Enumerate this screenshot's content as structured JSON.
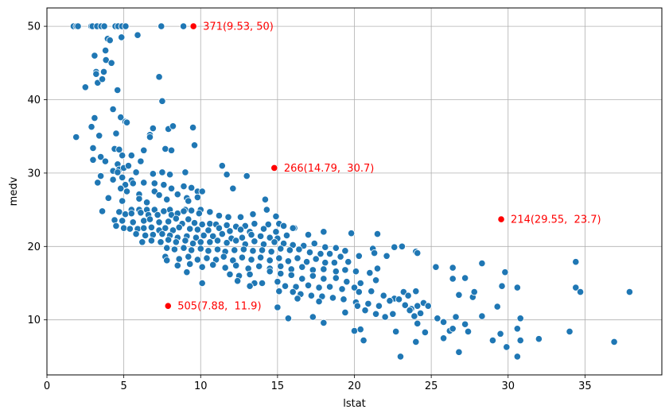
{
  "chart_data": {
    "type": "scatter",
    "title": "",
    "xlabel": "lstat",
    "ylabel": "medv",
    "xlim": [
      0,
      40
    ],
    "ylim": [
      2.5,
      52.5
    ],
    "xticks": [
      0,
      5,
      10,
      15,
      20,
      25,
      30,
      35
    ],
    "yticks": [
      10,
      20,
      30,
      40,
      50
    ],
    "grid": true,
    "point_color": "#1f77b4",
    "highlight_color": "#ff0000",
    "points": [
      [
        1.73,
        50
      ],
      [
        1.92,
        50
      ],
      [
        2.02,
        50
      ],
      [
        2.88,
        50
      ],
      [
        2.96,
        50
      ],
      [
        3.26,
        50
      ],
      [
        3.53,
        50
      ],
      [
        3.73,
        50
      ],
      [
        4.45,
        50
      ],
      [
        4.63,
        50
      ],
      [
        4.88,
        50
      ],
      [
        5.12,
        50
      ],
      [
        7.44,
        50
      ],
      [
        8.88,
        50
      ],
      [
        5.9,
        48.8
      ],
      [
        4.85,
        48.5
      ],
      [
        3.95,
        48.3
      ],
      [
        4.1,
        48.1
      ],
      [
        3.81,
        46.7
      ],
      [
        3.1,
        46
      ],
      [
        3.84,
        45.4
      ],
      [
        4.2,
        45
      ],
      [
        3.2,
        43.8
      ],
      [
        3.7,
        43.8
      ],
      [
        3.2,
        43.5
      ],
      [
        7.3,
        43.1
      ],
      [
        3.3,
        42.3
      ],
      [
        2.5,
        41.7
      ],
      [
        3.6,
        42.8
      ],
      [
        4.59,
        41.3
      ],
      [
        7.5,
        39.8
      ],
      [
        4.3,
        38.7
      ],
      [
        2.9,
        36.3
      ],
      [
        1.9,
        34.9
      ],
      [
        3.1,
        37.5
      ],
      [
        4.8,
        37.6
      ],
      [
        5.1,
        37
      ],
      [
        5.2,
        36.9
      ],
      [
        6.9,
        36.1
      ],
      [
        7.9,
        36
      ],
      [
        8.2,
        36.4
      ],
      [
        9.5,
        36.2
      ],
      [
        3.4,
        35.1
      ],
      [
        4.5,
        35.4
      ],
      [
        6.7,
        35.2
      ],
      [
        4.4,
        33.3
      ],
      [
        3.0,
        33.4
      ],
      [
        4.7,
        33.2
      ],
      [
        3.5,
        32.2
      ],
      [
        4.9,
        32.4
      ],
      [
        5.5,
        32.4
      ],
      [
        6.3,
        33.1
      ],
      [
        6.7,
        34.9
      ],
      [
        7.7,
        33.3
      ],
      [
        8.1,
        33.1
      ],
      [
        9.6,
        33.8
      ],
      [
        3.0,
        31.8
      ],
      [
        3.8,
        31.6
      ],
      [
        4.6,
        31.2
      ],
      [
        4.7,
        30.5
      ],
      [
        5.0,
        30.7
      ],
      [
        5.3,
        31.0
      ],
      [
        4.3,
        30.3
      ],
      [
        4.6,
        30.1
      ],
      [
        5.8,
        30.1
      ],
      [
        6.1,
        31.6
      ],
      [
        6.9,
        29.9
      ],
      [
        7.5,
        30.1
      ],
      [
        8.0,
        29.8
      ],
      [
        9.0,
        30.1
      ],
      [
        4.3,
        29.1
      ],
      [
        4.9,
        29.4
      ],
      [
        5.5,
        29.0
      ],
      [
        3.5,
        29.6
      ],
      [
        3.3,
        28.7
      ],
      [
        5.1,
        28.4
      ],
      [
        5.6,
        28.6
      ],
      [
        6.3,
        28.7
      ],
      [
        7.0,
        28.6
      ],
      [
        7.6,
        28.4
      ],
      [
        8.1,
        27.9
      ],
      [
        8.9,
        28.2
      ],
      [
        9.4,
        28.0
      ],
      [
        9.8,
        27.5
      ],
      [
        4.8,
        27.9
      ],
      [
        5.2,
        27.5
      ],
      [
        6.0,
        27.1
      ],
      [
        7.0,
        27.5
      ],
      [
        7.3,
        27.0
      ],
      [
        8.5,
        27.1
      ],
      [
        9.1,
        26.6
      ],
      [
        9.8,
        26.7
      ],
      [
        10.1,
        27.5
      ],
      [
        11.4,
        31.0
      ],
      [
        11.7,
        29.8
      ],
      [
        12.1,
        27.9
      ],
      [
        13.0,
        29.6
      ],
      [
        14.2,
        26.4
      ],
      [
        4.0,
        26.6
      ],
      [
        4.9,
        26.2
      ],
      [
        6.0,
        26.5
      ],
      [
        6.5,
        26.0
      ],
      [
        7.8,
        26.4
      ],
      [
        9.2,
        26.2
      ],
      [
        10.0,
        25.0
      ],
      [
        5.5,
        25.0
      ],
      [
        6.0,
        25.0
      ],
      [
        6.5,
        25.0
      ],
      [
        7.0,
        25.0
      ],
      [
        8.0,
        25.0
      ],
      [
        9.0,
        25.0
      ],
      [
        3.6,
        24.8
      ],
      [
        4.7,
        24.7
      ],
      [
        5.1,
        24.4
      ],
      [
        5.5,
        24.5
      ],
      [
        6.1,
        24.6
      ],
      [
        6.6,
        24.3
      ],
      [
        7.2,
        24.3
      ],
      [
        7.6,
        24.8
      ],
      [
        8.1,
        24.3
      ],
      [
        8.5,
        24.5
      ],
      [
        8.9,
        24.8
      ],
      [
        9.4,
        24.9
      ],
      [
        9.9,
        24.5
      ],
      [
        10.6,
        24.7
      ],
      [
        11.2,
        24.2
      ],
      [
        11.8,
        24.0
      ],
      [
        12.6,
        24.0
      ],
      [
        13.4,
        24.4
      ],
      [
        14.3,
        25.0
      ],
      [
        14.9,
        24.1
      ],
      [
        16.1,
        22.5
      ],
      [
        4.4,
        23.6
      ],
      [
        4.9,
        23.5
      ],
      [
        5.6,
        23.3
      ],
      [
        6.3,
        23.5
      ],
      [
        6.7,
        23.7
      ],
      [
        7.3,
        23.3
      ],
      [
        7.9,
        23.4
      ],
      [
        8.4,
        23.8
      ],
      [
        8.8,
        23.1
      ],
      [
        9.2,
        23.7
      ],
      [
        9.6,
        23.2
      ],
      [
        10.1,
        23.0
      ],
      [
        10.6,
        23.1
      ],
      [
        11.0,
        23.0
      ],
      [
        11.7,
        22.9
      ],
      [
        12.3,
        22.7
      ],
      [
        12.9,
        22.8
      ],
      [
        13.5,
        23.1
      ],
      [
        14.4,
        23.0
      ],
      [
        15.1,
        23.1
      ],
      [
        4.5,
        22.8
      ],
      [
        5.0,
        22.5
      ],
      [
        5.4,
        22.4
      ],
      [
        5.9,
        22.4
      ],
      [
        6.3,
        22.5
      ],
      [
        6.8,
        22.6
      ],
      [
        7.3,
        22.2
      ],
      [
        7.7,
        22.5
      ],
      [
        8.2,
        22.2
      ],
      [
        8.6,
        22.6
      ],
      [
        9.3,
        22.4
      ],
      [
        9.8,
        22.3
      ],
      [
        10.5,
        22.2
      ],
      [
        11.2,
        22.5
      ],
      [
        11.9,
        22.1
      ],
      [
        12.6,
        22.3
      ],
      [
        13.2,
        22.0
      ],
      [
        14.1,
        22.4
      ],
      [
        14.9,
        22.0
      ],
      [
        15.4,
        22.8
      ],
      [
        16.0,
        22.5
      ],
      [
        5.8,
        21.7
      ],
      [
        6.4,
        21.5
      ],
      [
        6.9,
        21.6
      ],
      [
        7.5,
        21.7
      ],
      [
        8.0,
        21.5
      ],
      [
        8.5,
        21.2
      ],
      [
        9.1,
        21.4
      ],
      [
        9.7,
        21.2
      ],
      [
        10.2,
        21.5
      ],
      [
        10.8,
        21.4
      ],
      [
        11.4,
        21.7
      ],
      [
        12.0,
        21.1
      ],
      [
        12.7,
        21.2
      ],
      [
        13.3,
        21.6
      ],
      [
        13.9,
        21.4
      ],
      [
        14.5,
        21.2
      ],
      [
        15.0,
        21.1
      ],
      [
        15.6,
        21.5
      ],
      [
        17.0,
        21.6
      ],
      [
        18.0,
        22.0
      ],
      [
        19.8,
        21.8
      ],
      [
        21.5,
        21.7
      ],
      [
        6.8,
        20.8
      ],
      [
        7.4,
        20.6
      ],
      [
        7.9,
        20.9
      ],
      [
        8.4,
        20.6
      ],
      [
        9.0,
        20.8
      ],
      [
        9.5,
        20.4
      ],
      [
        10.0,
        20.6
      ],
      [
        10.6,
        20.6
      ],
      [
        11.1,
        20.8
      ],
      [
        11.7,
        20.5
      ],
      [
        12.3,
        20.8
      ],
      [
        12.9,
        20.3
      ],
      [
        13.5,
        20.7
      ],
      [
        14.1,
        20.3
      ],
      [
        14.8,
        20.6
      ],
      [
        15.4,
        20.4
      ],
      [
        16.0,
        20.2
      ],
      [
        16.7,
        20.1
      ],
      [
        17.4,
        20.4
      ],
      [
        18.1,
        19.9
      ],
      [
        18.8,
        19.8
      ],
      [
        19.4,
        19.4
      ],
      [
        21.2,
        19.7
      ],
      [
        6.2,
        20.6
      ],
      [
        7.8,
        19.8
      ],
      [
        8.3,
        19.6
      ],
      [
        8.9,
        19.8
      ],
      [
        9.4,
        19.5
      ],
      [
        10.0,
        19.7
      ],
      [
        10.5,
        19.4
      ],
      [
        11.1,
        19.6
      ],
      [
        11.6,
        19.3
      ],
      [
        12.2,
        19.5
      ],
      [
        12.8,
        19.6
      ],
      [
        13.4,
        19.4
      ],
      [
        14.0,
        19.5
      ],
      [
        14.6,
        19.3
      ],
      [
        15.2,
        19.7
      ],
      [
        15.8,
        19.5
      ],
      [
        16.4,
        19.6
      ],
      [
        17.1,
        19.2
      ],
      [
        17.8,
        19.0
      ],
      [
        18.4,
        19.0
      ],
      [
        19.1,
        18.6
      ],
      [
        20.3,
        18.7
      ],
      [
        21.3,
        19.1
      ],
      [
        22.1,
        18.7
      ],
      [
        24.0,
        19.3
      ],
      [
        24.1,
        19.1
      ],
      [
        7.7,
        18.6
      ],
      [
        8.6,
        18.3
      ],
      [
        9.2,
        18.6
      ],
      [
        9.8,
        18.2
      ],
      [
        10.4,
        18.4
      ],
      [
        11.0,
        18.2
      ],
      [
        11.5,
        18.6
      ],
      [
        12.1,
        18.1
      ],
      [
        12.7,
        18.5
      ],
      [
        13.3,
        18.2
      ],
      [
        13.9,
        18.5
      ],
      [
        14.5,
        18.1
      ],
      [
        15.1,
        18.4
      ],
      [
        15.7,
        18.0
      ],
      [
        16.3,
        18.4
      ],
      [
        16.9,
        17.9
      ],
      [
        17.5,
        18.3
      ],
      [
        18.1,
        17.8
      ],
      [
        18.7,
        17.8
      ],
      [
        19.6,
        17.9
      ],
      [
        22.6,
        19.9
      ],
      [
        23.1,
        20.0
      ],
      [
        7.8,
        18.1
      ],
      [
        8.5,
        17.4
      ],
      [
        9.3,
        17.6
      ],
      [
        10.1,
        17.2
      ],
      [
        10.8,
        17.5
      ],
      [
        11.6,
        17.1
      ],
      [
        12.3,
        17.4
      ],
      [
        13.1,
        17.0
      ],
      [
        13.8,
        17.3
      ],
      [
        14.5,
        17.0
      ],
      [
        15.2,
        17.3
      ],
      [
        15.9,
        16.9
      ],
      [
        16.6,
        17.2
      ],
      [
        17.3,
        16.8
      ],
      [
        18.0,
        16.9
      ],
      [
        18.8,
        16.6
      ],
      [
        19.4,
        16.8
      ],
      [
        20.1,
        16.6
      ],
      [
        21.0,
        16.4
      ],
      [
        21.5,
        17.0
      ],
      [
        25.3,
        17.2
      ],
      [
        26.4,
        17.1
      ],
      [
        28.3,
        17.7
      ],
      [
        9.1,
        16.5
      ],
      [
        11.9,
        16.2
      ],
      [
        12.5,
        16.0
      ],
      [
        13.2,
        16.2
      ],
      [
        14.5,
        16.6
      ],
      [
        15.2,
        16.3
      ],
      [
        15.9,
        16.1
      ],
      [
        16.6,
        15.6
      ],
      [
        17.3,
        16.0
      ],
      [
        18.0,
        15.6
      ],
      [
        18.8,
        15.7
      ],
      [
        19.5,
        15.2
      ],
      [
        20.4,
        15.0
      ],
      [
        21.4,
        15.4
      ],
      [
        12.4,
        15.3
      ],
      [
        13.5,
        15.0
      ],
      [
        15.0,
        15.2
      ],
      [
        15.5,
        14.6
      ],
      [
        16.2,
        14.5
      ],
      [
        17.0,
        14.7
      ],
      [
        17.7,
        14.4
      ],
      [
        18.4,
        14.5
      ],
      [
        19.2,
        14.2
      ],
      [
        20.0,
        14.4
      ],
      [
        20.3,
        13.8
      ],
      [
        21.1,
        13.9
      ],
      [
        21.9,
        13.3
      ],
      [
        22.6,
        12.9
      ],
      [
        26.4,
        15.6
      ],
      [
        27.2,
        15.7
      ],
      [
        29.6,
        14.6
      ],
      [
        30.6,
        14.4
      ],
      [
        29.8,
        16.5
      ],
      [
        10.1,
        15.0
      ],
      [
        14.0,
        15.0
      ],
      [
        13.2,
        14.6
      ],
      [
        15.1,
        13.9
      ],
      [
        16.0,
        13.8
      ],
      [
        16.5,
        13.5
      ],
      [
        17.2,
        13.3
      ],
      [
        17.9,
        13.2
      ],
      [
        18.6,
        13.0
      ],
      [
        19.3,
        12.8
      ],
      [
        20.1,
        12.4
      ],
      [
        20.9,
        12.2
      ],
      [
        21.6,
        11.9
      ],
      [
        22.3,
        12.6
      ],
      [
        22.9,
        12.8
      ],
      [
        23.2,
        13.8
      ],
      [
        23.5,
        13.3
      ],
      [
        24.0,
        13.9
      ],
      [
        24.5,
        12.3
      ],
      [
        24.8,
        11.9
      ],
      [
        26.8,
        13.4
      ],
      [
        27.7,
        13.1
      ],
      [
        27.8,
        13.8
      ],
      [
        16.3,
        12.9
      ],
      [
        17.7,
        12.5
      ],
      [
        23.3,
        12.0
      ],
      [
        23.7,
        11.5
      ],
      [
        24.1,
        11.9
      ],
      [
        25.4,
        10.2
      ],
      [
        26.2,
        8.5
      ],
      [
        26.6,
        10.4
      ],
      [
        27.2,
        9.4
      ],
      [
        28.3,
        10.5
      ],
      [
        29.3,
        11.8
      ],
      [
        30.8,
        10.2
      ],
      [
        15.0,
        11.7
      ],
      [
        15.7,
        10.2
      ],
      [
        17.3,
        10.4
      ],
      [
        18.0,
        9.6
      ],
      [
        19.4,
        11.0
      ],
      [
        20.2,
        11.9
      ],
      [
        20.7,
        11.3
      ],
      [
        21.4,
        10.8
      ],
      [
        22.0,
        10.4
      ],
      [
        22.5,
        10.8
      ],
      [
        23.6,
        11.3
      ],
      [
        23.9,
        10.5
      ],
      [
        24.3,
        10.9
      ],
      [
        25.8,
        9.7
      ],
      [
        30.6,
        8.8
      ],
      [
        34.0,
        8.4
      ],
      [
        34.4,
        14.4
      ],
      [
        34.4,
        17.9
      ],
      [
        34.7,
        13.8
      ],
      [
        37.9,
        13.8
      ],
      [
        20.0,
        8.5
      ],
      [
        20.4,
        8.7
      ],
      [
        20.6,
        7.2
      ],
      [
        22.7,
        8.4
      ],
      [
        24.1,
        9.5
      ],
      [
        24.6,
        8.3
      ],
      [
        25.8,
        7.5
      ],
      [
        26.4,
        8.8
      ],
      [
        26.8,
        5.6
      ],
      [
        27.4,
        8.4
      ],
      [
        29.0,
        7.2
      ],
      [
        29.5,
        8.1
      ],
      [
        29.9,
        6.3
      ],
      [
        30.6,
        5.0
      ],
      [
        30.8,
        7.2
      ],
      [
        32.0,
        7.4
      ],
      [
        36.9,
        7.0
      ],
      [
        23.0,
        5.0
      ],
      [
        24.0,
        7.0
      ]
    ],
    "highlights": [
      {
        "id": "371",
        "x": 9.53,
        "y": 50,
        "label": "371(9.53, 50)"
      },
      {
        "id": "266",
        "x": 14.79,
        "y": 30.7,
        "label": "266(14.79,  30.7)"
      },
      {
        "id": "214",
        "x": 29.55,
        "y": 23.7,
        "label": "214(29.55,  23.7)"
      },
      {
        "id": "505",
        "x": 7.88,
        "y": 11.9,
        "label": "505(7.88,  11.9)"
      }
    ]
  }
}
